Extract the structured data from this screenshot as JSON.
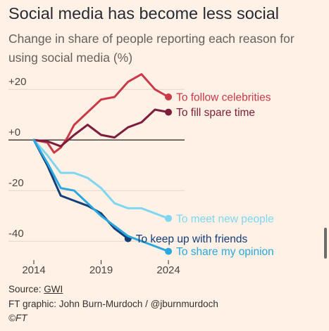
{
  "header": {
    "title": "Social media has become less social",
    "subtitle": "Change in share of people reporting each reason for using social media (%)"
  },
  "footer": {
    "source_prefix": "Source: ",
    "source_link": "GWI",
    "credit": "FT graphic: John Burn-Murdoch / @jburnmurdoch",
    "copyright": "©FT"
  },
  "chart_data": {
    "type": "line",
    "xlim": [
      2014,
      2025.2
    ],
    "ylim": [
      -48,
      27
    ],
    "xticks": [
      {
        "value": 2014,
        "label": "2014"
      },
      {
        "value": 2019,
        "label": "2019"
      },
      {
        "value": 2024,
        "label": "2024"
      }
    ],
    "yticks": [
      {
        "value": 20,
        "label": "+20"
      },
      {
        "value": 0,
        "label": "+0"
      },
      {
        "value": -20,
        "label": "-20"
      },
      {
        "value": -40,
        "label": "-40"
      }
    ],
    "series": [
      {
        "name": "To follow celebrities",
        "color": "#cc3a4a",
        "x": [
          2014,
          2015,
          2015.5,
          2016,
          2016.5,
          2017,
          2018,
          2019,
          2020,
          2021,
          2022,
          2023,
          2024
        ],
        "y": [
          0,
          -1,
          -5,
          -3,
          1,
          6,
          11,
          16,
          17,
          23,
          26,
          20,
          17
        ]
      },
      {
        "name": "To fill spare time",
        "color": "#7d1c3c",
        "x": [
          2014,
          2015,
          2016,
          2017,
          2018,
          2019,
          2020,
          2021,
          2022,
          2023,
          2024
        ],
        "y": [
          0,
          -0.5,
          -2.5,
          2,
          6,
          2,
          1,
          5,
          7,
          12,
          11
        ]
      },
      {
        "name": "To meet new people",
        "color": "#7fd6f0",
        "x": [
          2014,
          2015,
          2016,
          2017,
          2018,
          2019,
          2020,
          2021,
          2022,
          2023,
          2024
        ],
        "y": [
          0,
          -6,
          -13,
          -13,
          -15,
          -19,
          -25,
          -27,
          -27,
          -29,
          -31
        ]
      },
      {
        "name": "To keep up with friends",
        "color": "#143d7a",
        "x": [
          2014,
          2015,
          2016,
          2017,
          2018,
          2019,
          2020,
          2021
        ],
        "y": [
          0,
          -10,
          -22,
          -24,
          -26,
          -29,
          -35,
          -39
        ]
      },
      {
        "name": "To share my opinion",
        "color": "#2aa7dc",
        "x": [
          2014,
          2015,
          2016,
          2017,
          2018,
          2019,
          2020,
          2021,
          2022,
          2023,
          2024
        ],
        "y": [
          0,
          -9,
          -19,
          -20,
          -25,
          -30,
          -34,
          -38,
          -40,
          -42,
          -44
        ]
      }
    ]
  }
}
